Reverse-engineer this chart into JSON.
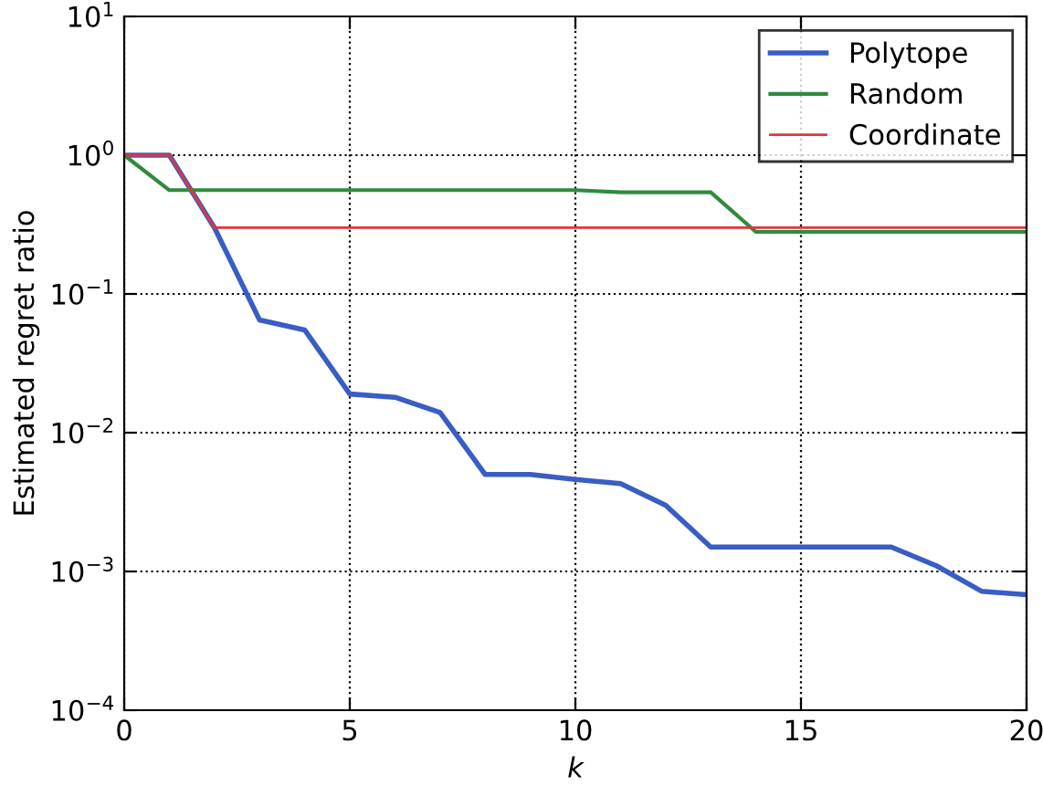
{
  "chart_data": {
    "type": "line",
    "xlabel": "k",
    "ylabel": "Estimated regret ratio",
    "x": [
      0,
      1,
      2,
      3,
      4,
      5,
      6,
      7,
      8,
      9,
      10,
      11,
      12,
      13,
      14,
      15,
      16,
      17,
      18,
      19,
      20
    ],
    "series": [
      {
        "name": "Polytope",
        "color": "#3a5dc4",
        "values": [
          1,
          1,
          0.3,
          0.065,
          0.055,
          0.019,
          0.018,
          0.014,
          0.005,
          0.005,
          0.0046,
          0.0043,
          0.003,
          0.0015,
          0.0015,
          0.0015,
          0.0015,
          0.0015,
          0.0011,
          0.00072,
          0.00068
        ]
      },
      {
        "name": "Random",
        "color": "#2e8b3e",
        "values": [
          1,
          0.56,
          0.56,
          0.56,
          0.56,
          0.56,
          0.56,
          0.56,
          0.56,
          0.56,
          0.56,
          0.54,
          0.54,
          0.54,
          0.28,
          0.28,
          0.28,
          0.28,
          0.28,
          0.28,
          0.28
        ]
      },
      {
        "name": "Coordinate",
        "color": "#e0363a",
        "values": [
          1,
          1,
          0.3,
          0.3,
          0.3,
          0.3,
          0.3,
          0.3,
          0.3,
          0.3,
          0.3,
          0.3,
          0.3,
          0.3,
          0.3,
          0.3,
          0.3,
          0.3,
          0.3,
          0.3,
          0.3
        ]
      }
    ],
    "log": "y",
    "xlim": [
      0,
      20
    ],
    "xticks": [
      0,
      5,
      10,
      15,
      20
    ],
    "ylim": [
      0.0001,
      10
    ],
    "yticks": [
      {
        "value": 0.0001,
        "label": "10$^{−4}$"
      },
      {
        "value": 0.001,
        "label": "10$^{−3}$"
      },
      {
        "value": 0.01,
        "label": "10$^{−2}$"
      },
      {
        "value": 0.1,
        "label": "10$^{−1}$"
      },
      {
        "value": 1,
        "label": "10$^{0}$"
      },
      {
        "value": 10,
        "label": "10$^{1}$"
      }
    ],
    "grid": true,
    "legend": "top right",
    "line_style": "solid",
    "marker": "none"
  }
}
